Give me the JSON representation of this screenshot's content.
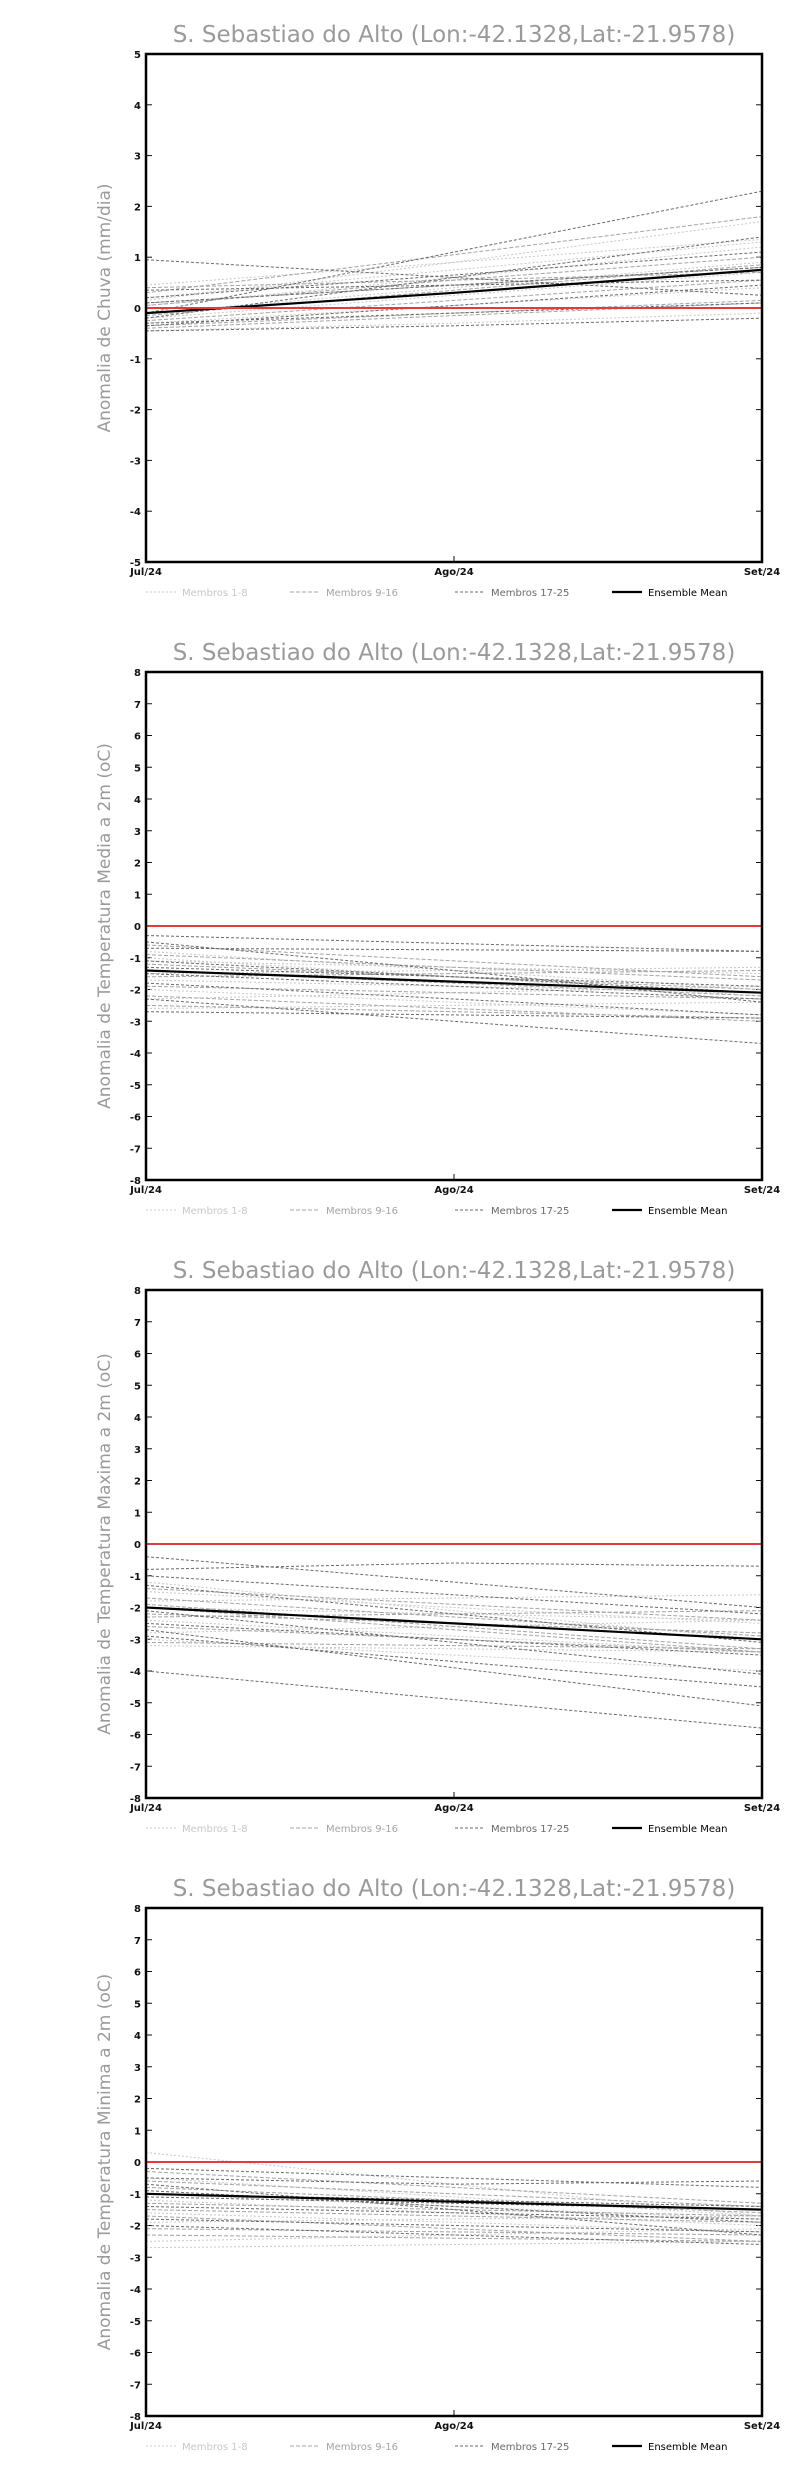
{
  "chart_data": [
    {
      "type": "line",
      "title": "S. Sebastiao do Alto (Lon:-42.1328,Lat:-21.9578)",
      "ylabel": "Anomalia de Chuva (mm/dia)",
      "xlabel": "",
      "categories": [
        "Jul/24",
        "Ago/24",
        "Set/24"
      ],
      "ylim": [
        -5,
        5
      ],
      "yticks": [
        -5,
        -4,
        -3,
        -2,
        -1,
        0,
        1,
        2,
        3,
        4,
        5
      ],
      "grid": false,
      "legend": [
        "Membros 1-8",
        "Membros 9-16",
        "Membros 17-25",
        "Ensemble Mean"
      ],
      "legend_position": "bottom",
      "reference_line": {
        "y": 0,
        "color": "#e23b3b"
      },
      "colors": {
        "members_1_8": "#c8c8c8",
        "members_9_16": "#a4a4a4",
        "members_17_25": "#6a6a6a",
        "ensemble_mean": "#000000"
      },
      "series": [
        {
          "group": 0,
          "values": [
            0.2,
            0.75,
            1.3
          ]
        },
        {
          "group": 0,
          "values": [
            -0.1,
            0.4,
            0.9
          ]
        },
        {
          "group": 0,
          "values": [
            0.45,
            0.9,
            1.35
          ]
        },
        {
          "group": 0,
          "values": [
            -0.3,
            0.05,
            0.4
          ]
        },
        {
          "group": 0,
          "values": [
            0.05,
            0.6,
            1.2
          ]
        },
        {
          "group": 0,
          "values": [
            -0.2,
            0.25,
            0.7
          ]
        },
        {
          "group": 0,
          "values": [
            0.15,
            0.9,
            1.7
          ]
        },
        {
          "group": 0,
          "values": [
            -0.45,
            -0.3,
            -0.1
          ]
        },
        {
          "group": 1,
          "values": [
            0.3,
            1.05,
            1.8
          ]
        },
        {
          "group": 1,
          "values": [
            -0.15,
            0.35,
            0.85
          ]
        },
        {
          "group": 1,
          "values": [
            0.05,
            0.55,
            1.0
          ]
        },
        {
          "group": 1,
          "values": [
            -0.35,
            -0.1,
            0.15
          ]
        },
        {
          "group": 1,
          "values": [
            0.1,
            0.45,
            0.8
          ]
        },
        {
          "group": 1,
          "values": [
            -0.25,
            0.15,
            0.55
          ]
        },
        {
          "group": 1,
          "values": [
            0.4,
            0.55,
            0.7
          ]
        },
        {
          "group": 1,
          "values": [
            -0.4,
            -0.15,
            0.1
          ]
        },
        {
          "group": 2,
          "values": [
            -0.1,
            1.1,
            2.3
          ]
        },
        {
          "group": 2,
          "values": [
            0.95,
            0.6,
            0.25
          ]
        },
        {
          "group": 2,
          "values": [
            -0.2,
            0.6,
            1.4
          ]
        },
        {
          "group": 2,
          "values": [
            0.1,
            0.45,
            0.8
          ]
        },
        {
          "group": 2,
          "values": [
            -0.35,
            0.05,
            0.45
          ]
        },
        {
          "group": 2,
          "values": [
            0.35,
            0.45,
            0.55
          ]
        },
        {
          "group": 2,
          "values": [
            -0.45,
            -0.35,
            -0.2
          ]
        },
        {
          "group": 2,
          "values": [
            0.2,
            0.65,
            1.1
          ]
        },
        {
          "group": 2,
          "values": [
            -0.3,
            -0.1,
            0.1
          ]
        },
        {
          "group": 3,
          "values": [
            -0.1,
            0.3,
            0.75
          ]
        }
      ]
    },
    {
      "type": "line",
      "title": "S. Sebastiao do Alto (Lon:-42.1328,Lat:-21.9578)",
      "ylabel": "Anomalia de Temperatura Media a 2m (oC)",
      "xlabel": "",
      "categories": [
        "Jul/24",
        "Ago/24",
        "Set/24"
      ],
      "ylim": [
        -8,
        8
      ],
      "yticks": [
        -8,
        -7,
        -6,
        -5,
        -4,
        -3,
        -2,
        -1,
        0,
        1,
        2,
        3,
        4,
        5,
        6,
        7,
        8
      ],
      "grid": false,
      "legend": [
        "Membros 1-8",
        "Membros 9-16",
        "Membros 17-25",
        "Ensemble Mean"
      ],
      "legend_position": "bottom",
      "reference_line": {
        "y": 0,
        "color": "#e23b3b"
      },
      "colors": {
        "members_1_8": "#c8c8c8",
        "members_9_16": "#a4a4a4",
        "members_17_25": "#6a6a6a",
        "ensemble_mean": "#000000"
      },
      "series": [
        {
          "group": 0,
          "values": [
            -2.6,
            -2.5,
            -2.4
          ]
        },
        {
          "group": 0,
          "values": [
            -1.1,
            -1.3,
            -1.5
          ]
        },
        {
          "group": 0,
          "values": [
            -0.8,
            -1.4,
            -2.0
          ]
        },
        {
          "group": 0,
          "values": [
            -1.7,
            -1.9,
            -2.1
          ]
        },
        {
          "group": 0,
          "values": [
            -2.3,
            -2.1,
            -1.9
          ]
        },
        {
          "group": 0,
          "values": [
            -1.0,
            -1.6,
            -2.2
          ]
        },
        {
          "group": 0,
          "values": [
            -1.5,
            -1.4,
            -1.3
          ]
        },
        {
          "group": 0,
          "values": [
            -2.0,
            -2.4,
            -2.8
          ]
        },
        {
          "group": 1,
          "values": [
            -0.6,
            -1.1,
            -1.6
          ]
        },
        {
          "group": 1,
          "values": [
            -1.2,
            -1.6,
            -2.0
          ]
        },
        {
          "group": 1,
          "values": [
            -1.9,
            -2.1,
            -2.3
          ]
        },
        {
          "group": 1,
          "values": [
            -0.9,
            -1.3,
            -1.7
          ]
        },
        {
          "group": 1,
          "values": [
            -2.5,
            -2.7,
            -2.9
          ]
        },
        {
          "group": 1,
          "values": [
            -1.4,
            -1.8,
            -2.2
          ]
        },
        {
          "group": 1,
          "values": [
            -1.6,
            -1.5,
            -1.4
          ]
        },
        {
          "group": 1,
          "values": [
            -2.2,
            -2.6,
            -3.0
          ]
        },
        {
          "group": 2,
          "values": [
            -0.3,
            -0.55,
            -0.8
          ]
        },
        {
          "group": 2,
          "values": [
            -0.7,
            -0.75,
            -0.8
          ]
        },
        {
          "group": 2,
          "values": [
            -1.3,
            -1.6,
            -1.9
          ]
        },
        {
          "group": 2,
          "values": [
            -2.3,
            -3.0,
            -3.7
          ]
        },
        {
          "group": 2,
          "values": [
            -1.8,
            -2.3,
            -2.8
          ]
        },
        {
          "group": 2,
          "values": [
            -1.5,
            -1.9,
            -2.3
          ]
        },
        {
          "group": 2,
          "values": [
            -0.5,
            -1.4,
            -2.4
          ]
        },
        {
          "group": 2,
          "values": [
            -1.1,
            -1.6,
            -2.1
          ]
        },
        {
          "group": 2,
          "values": [
            -2.7,
            -2.8,
            -2.9
          ]
        },
        {
          "group": 3,
          "values": [
            -1.4,
            -1.75,
            -2.1
          ]
        }
      ]
    },
    {
      "type": "line",
      "title": "S. Sebastiao do Alto (Lon:-42.1328,Lat:-21.9578)",
      "ylabel": "Anomalia de Temperatura Maxima a 2m (oC)",
      "xlabel": "",
      "categories": [
        "Jul/24",
        "Ago/24",
        "Set/24"
      ],
      "ylim": [
        -8,
        8
      ],
      "yticks": [
        -8,
        -7,
        -6,
        -5,
        -4,
        -3,
        -2,
        -1,
        0,
        1,
        2,
        3,
        4,
        5,
        6,
        7,
        8
      ],
      "grid": false,
      "legend": [
        "Membros 1-8",
        "Membros 9-16",
        "Membros 17-25",
        "Ensemble Mean"
      ],
      "legend_position": "bottom",
      "reference_line": {
        "y": 0,
        "color": "#e23b3b"
      },
      "colors": {
        "members_1_8": "#c8c8c8",
        "members_9_16": "#a4a4a4",
        "members_17_25": "#6a6a6a",
        "ensemble_mean": "#000000"
      },
      "series": [
        {
          "group": 0,
          "values": [
            -3.2,
            -3.3,
            -3.4
          ]
        },
        {
          "group": 0,
          "values": [
            -1.5,
            -2.0,
            -2.5
          ]
        },
        {
          "group": 0,
          "values": [
            -2.0,
            -2.2,
            -2.4
          ]
        },
        {
          "group": 0,
          "values": [
            -2.8,
            -2.6,
            -2.4
          ]
        },
        {
          "group": 0,
          "values": [
            -1.2,
            -2.1,
            -3.0
          ]
        },
        {
          "group": 0,
          "values": [
            -2.4,
            -2.9,
            -3.4
          ]
        },
        {
          "group": 0,
          "values": [
            -1.8,
            -1.7,
            -1.6
          ]
        },
        {
          "group": 0,
          "values": [
            -3.0,
            -3.5,
            -4.0
          ]
        },
        {
          "group": 1,
          "values": [
            -1.7,
            -2.3,
            -2.9
          ]
        },
        {
          "group": 1,
          "values": [
            -2.2,
            -2.5,
            -2.8
          ]
        },
        {
          "group": 1,
          "values": [
            -2.6,
            -3.0,
            -3.4
          ]
        },
        {
          "group": 1,
          "values": [
            -1.4,
            -1.9,
            -2.4
          ]
        },
        {
          "group": 1,
          "values": [
            -3.1,
            -3.2,
            -3.3
          ]
        },
        {
          "group": 1,
          "values": [
            -2.0,
            -2.7,
            -3.4
          ]
        },
        {
          "group": 1,
          "values": [
            -2.3,
            -2.2,
            -2.1
          ]
        },
        {
          "group": 1,
          "values": [
            -1.9,
            -2.6,
            -3.3
          ]
        },
        {
          "group": 2,
          "values": [
            -0.4,
            -1.2,
            -2.0
          ]
        },
        {
          "group": 2,
          "values": [
            -0.8,
            -0.6,
            -0.7
          ]
        },
        {
          "group": 2,
          "values": [
            -4.0,
            -4.9,
            -5.8
          ]
        },
        {
          "group": 2,
          "values": [
            -1.3,
            -2.2,
            -3.1
          ]
        },
        {
          "group": 2,
          "values": [
            -2.7,
            -3.9,
            -5.1
          ]
        },
        {
          "group": 2,
          "values": [
            -2.1,
            -3.1,
            -4.1
          ]
        },
        {
          "group": 2,
          "values": [
            -2.9,
            -3.7,
            -4.5
          ]
        },
        {
          "group": 2,
          "values": [
            -1.0,
            -1.6,
            -2.2
          ]
        },
        {
          "group": 2,
          "values": [
            -2.5,
            -3.0,
            -3.5
          ]
        },
        {
          "group": 3,
          "values": [
            -2.0,
            -2.5,
            -3.0
          ]
        }
      ]
    },
    {
      "type": "line",
      "title": "S. Sebastiao do Alto (Lon:-42.1328,Lat:-21.9578)",
      "ylabel": "Anomalia de Temperatura Minima a 2m (oC)",
      "xlabel": "",
      "categories": [
        "Jul/24",
        "Ago/24",
        "Set/24"
      ],
      "ylim": [
        -8,
        8
      ],
      "yticks": [
        -8,
        -7,
        -6,
        -5,
        -4,
        -3,
        -2,
        -1,
        0,
        1,
        2,
        3,
        4,
        5,
        6,
        7,
        8
      ],
      "grid": false,
      "legend": [
        "Membros 1-8",
        "Membros 9-16",
        "Membros 17-25",
        "Ensemble Mean"
      ],
      "legend_position": "bottom",
      "reference_line": {
        "y": 0,
        "color": "#e23b3b"
      },
      "colors": {
        "members_1_8": "#c8c8c8",
        "members_9_16": "#a4a4a4",
        "members_17_25": "#6a6a6a",
        "ensemble_mean": "#000000"
      },
      "series": [
        {
          "group": 0,
          "values": [
            0.3,
            -0.7,
            -1.7
          ]
        },
        {
          "group": 0,
          "values": [
            -2.5,
            -2.3,
            -2.1
          ]
        },
        {
          "group": 0,
          "values": [
            -1.0,
            -1.4,
            -1.8
          ]
        },
        {
          "group": 0,
          "values": [
            -1.6,
            -1.9,
            -2.2
          ]
        },
        {
          "group": 0,
          "values": [
            -2.7,
            -2.6,
            -2.5
          ]
        },
        {
          "group": 0,
          "values": [
            -0.5,
            -1.1,
            -1.7
          ]
        },
        {
          "group": 0,
          "values": [
            -1.9,
            -1.8,
            -1.7
          ]
        },
        {
          "group": 0,
          "values": [
            -1.2,
            -1.6,
            -2.0
          ]
        },
        {
          "group": 1,
          "values": [
            -0.8,
            -1.2,
            -1.6
          ]
        },
        {
          "group": 1,
          "values": [
            -1.5,
            -1.7,
            -1.9
          ]
        },
        {
          "group": 1,
          "values": [
            -2.1,
            -2.2,
            -2.3
          ]
        },
        {
          "group": 1,
          "values": [
            -0.3,
            -0.8,
            -1.3
          ]
        },
        {
          "group": 1,
          "values": [
            -1.3,
            -1.5,
            -1.7
          ]
        },
        {
          "group": 1,
          "values": [
            -1.7,
            -2.1,
            -2.5
          ]
        },
        {
          "group": 1,
          "values": [
            -0.6,
            -1.0,
            -1.4
          ]
        },
        {
          "group": 1,
          "values": [
            -2.3,
            -2.4,
            -2.5
          ]
        },
        {
          "group": 2,
          "values": [
            -0.2,
            -0.5,
            -0.8
          ]
        },
        {
          "group": 2,
          "values": [
            -0.5,
            -0.7,
            -0.6
          ]
        },
        {
          "group": 2,
          "values": [
            -0.9,
            -1.4,
            -1.9
          ]
        },
        {
          "group": 2,
          "values": [
            -1.4,
            -1.6,
            -1.8
          ]
        },
        {
          "group": 2,
          "values": [
            -0.7,
            -1.5,
            -2.3
          ]
        },
        {
          "group": 2,
          "values": [
            -1.1,
            -1.3,
            -1.5
          ]
        },
        {
          "group": 2,
          "values": [
            -1.8,
            -2.0,
            -2.2
          ]
        },
        {
          "group": 2,
          "values": [
            -1.0,
            -1.2,
            -1.4
          ]
        },
        {
          "group": 2,
          "values": [
            -2.0,
            -2.3,
            -2.6
          ]
        },
        {
          "group": 3,
          "values": [
            -1.0,
            -1.25,
            -1.5
          ]
        }
      ]
    }
  ]
}
